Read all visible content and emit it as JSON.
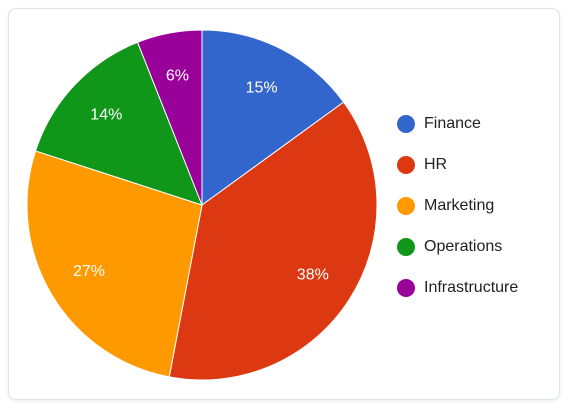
{
  "chart_data": {
    "type": "pie",
    "categories": [
      "Finance",
      "HR",
      "Marketing",
      "Operations",
      "Infrastructure"
    ],
    "values": [
      15,
      38,
      27,
      14,
      6
    ],
    "value_labels": [
      "15%",
      "38%",
      "27%",
      "14%",
      "6%"
    ],
    "colors": [
      "#3366cc",
      "#dc3912",
      "#ff9900",
      "#109618",
      "#990099"
    ],
    "legend": "right"
  }
}
